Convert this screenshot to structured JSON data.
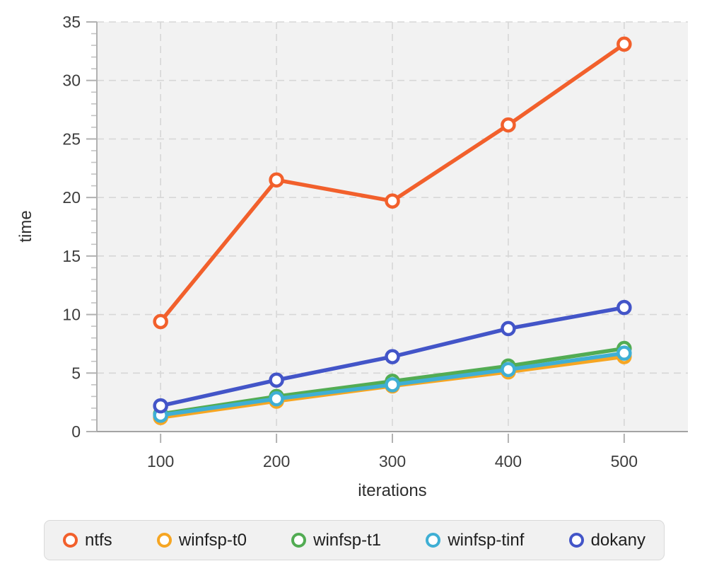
{
  "chart_data": {
    "type": "line",
    "title": "",
    "xlabel": "iterations",
    "ylabel": "time",
    "xticks": [
      100,
      200,
      300,
      400,
      500
    ],
    "yticks": [
      0,
      5,
      10,
      15,
      20,
      25,
      30,
      35
    ],
    "xlim": [
      45,
      555
    ],
    "ylim": [
      0,
      35
    ],
    "grid": "dashed",
    "legend_position": "bottom",
    "x": [
      100,
      200,
      300,
      400,
      500
    ],
    "series": [
      {
        "name": "ntfs",
        "color": "#f2602c",
        "values": [
          9.4,
          21.5,
          19.7,
          26.2,
          33.1
        ]
      },
      {
        "name": "winfsp-t0",
        "color": "#f6a623",
        "values": [
          1.2,
          2.6,
          3.9,
          5.1,
          6.4
        ]
      },
      {
        "name": "winfsp-t1",
        "color": "#52ac53",
        "values": [
          1.5,
          3.0,
          4.3,
          5.6,
          7.1
        ]
      },
      {
        "name": "winfsp-tinf",
        "color": "#3fafd4",
        "values": [
          1.4,
          2.8,
          4.0,
          5.3,
          6.7
        ]
      },
      {
        "name": "dokany",
        "color": "#4355c8",
        "values": [
          2.2,
          4.4,
          6.4,
          8.8,
          10.6
        ]
      }
    ]
  }
}
